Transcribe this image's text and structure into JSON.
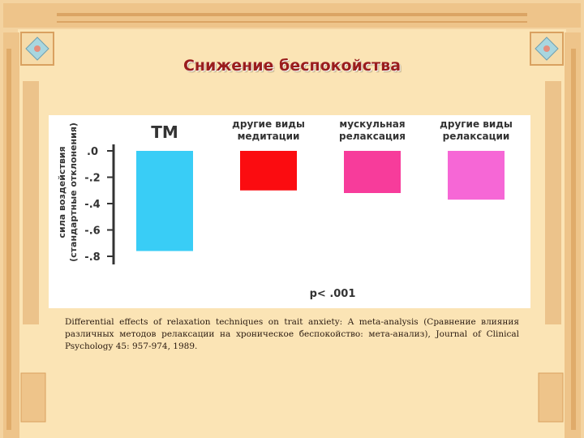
{
  "slide": {
    "title": "Снижение беспокойства",
    "caption": "Differential effects of relaxation techniques on trait anxiety: A meta-analysis (Сравнение влияния различных методов релаксации на хроническое беспокойство: мета-анализ), Journal of Clinical Psychology 45: 957-974, 1989."
  },
  "colors": {
    "background": "#f4d3a0",
    "frame_inner": "#fbe4b5",
    "ornament": "#e6b06c",
    "title": "#9a1d1d",
    "axis": "#333333"
  },
  "chart_data": {
    "type": "bar",
    "categories": [
      [
        "ТМ"
      ],
      [
        "другие виды",
        "медитации"
      ],
      [
        "мускульная",
        "релаксация"
      ],
      [
        "другие виды",
        "релаксации"
      ]
    ],
    "values": [
      -0.76,
      -0.3,
      -0.32,
      -0.37
    ],
    "colors": [
      "#39cdf6",
      "#fb0c10",
      "#f73c9b",
      "#f667d6"
    ],
    "ylim": [
      -0.8,
      0.0
    ],
    "yticks": [
      ".0",
      "-.2",
      "-.4",
      "-.6",
      "-.8"
    ],
    "ytick_values": [
      0.0,
      -0.2,
      -0.4,
      -0.6,
      -0.8
    ],
    "ylabel": [
      "сила воздействия",
      "(стандартные отклонения)"
    ],
    "annotation": "p< .001"
  }
}
